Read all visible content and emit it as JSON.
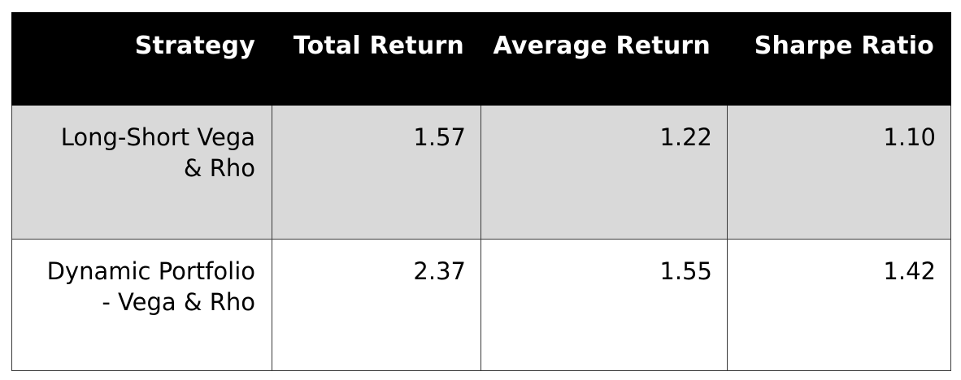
{
  "table": {
    "headers": [
      "Strategy",
      "Total Return",
      "Average Return",
      "Sharpe Ratio"
    ],
    "rows": [
      {
        "strategy_line1": "Long-Short Vega",
        "strategy_line2": "& Rho",
        "total_return": "1.57",
        "average_return": "1.22",
        "sharpe_ratio": "1.10"
      },
      {
        "strategy_line1": "Dynamic Portfolio",
        "strategy_line2": "- Vega & Rho",
        "total_return": "2.37",
        "average_return": "1.55",
        "sharpe_ratio": "1.42"
      }
    ]
  },
  "colors": {
    "header_background": "#000000",
    "header_text": "#ffffff",
    "shaded_row": "#d9d9d9",
    "plain_row": "#ffffff"
  }
}
